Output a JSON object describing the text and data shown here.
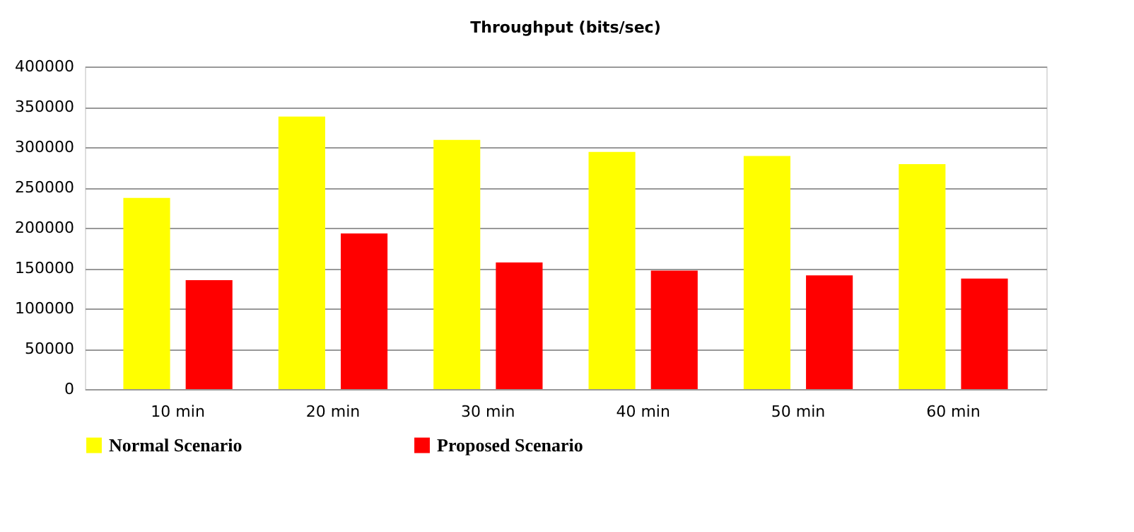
{
  "chart_data": {
    "type": "bar",
    "title": "Throughput (bits/sec)",
    "categories": [
      "10 min",
      "20 min",
      "30 min",
      "40 min",
      "50 min",
      "60 min"
    ],
    "series": [
      {
        "name": "Normal Scenario",
        "color": "#ffff00",
        "values": [
          237000,
          338000,
          309000,
          294000,
          289000,
          279000
        ]
      },
      {
        "name": "Proposed Scenario",
        "color": "#ff0000",
        "values": [
          135000,
          193000,
          157000,
          147000,
          141000,
          137000
        ]
      }
    ],
    "ylim": [
      0,
      400000
    ],
    "yticks": [
      0,
      50000,
      100000,
      150000,
      200000,
      250000,
      300000,
      350000,
      400000
    ],
    "grid": "y",
    "legend": "bottom"
  }
}
